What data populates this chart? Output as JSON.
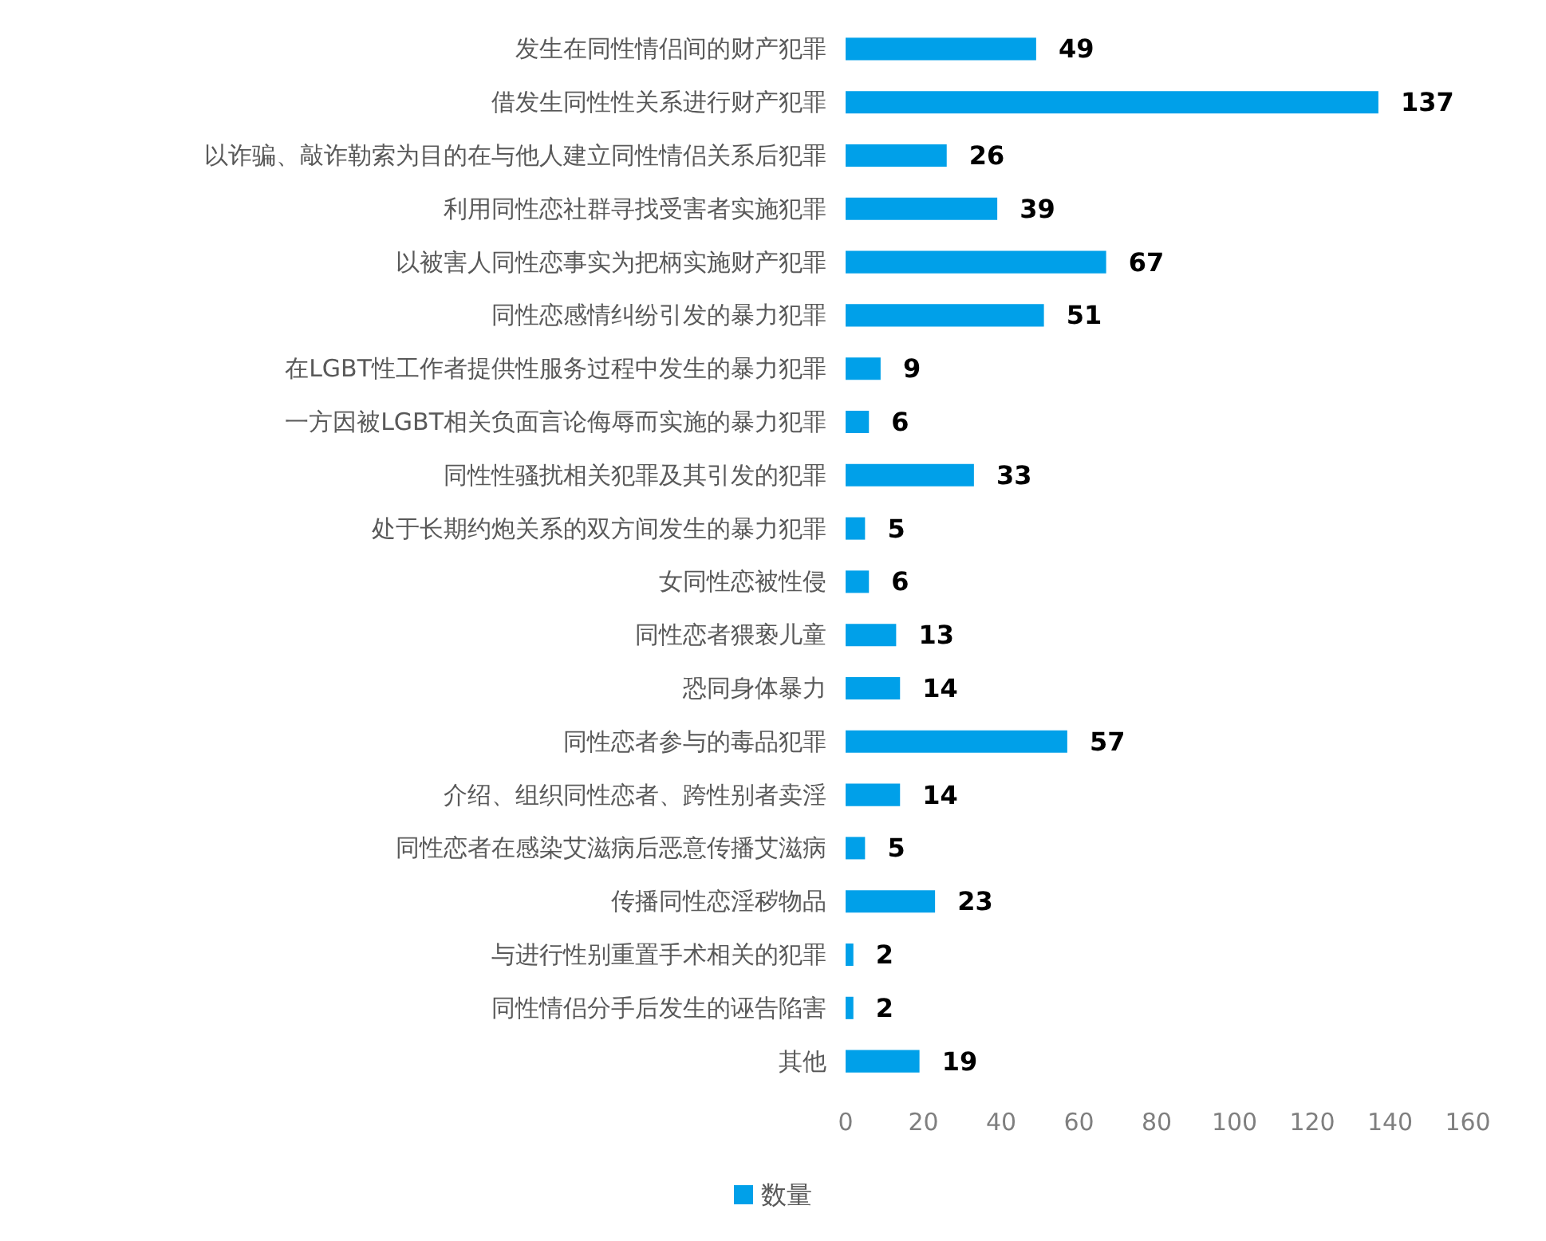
{
  "chart_data": {
    "type": "bar",
    "orientation": "horizontal",
    "categories": [
      "发生在同性情侣间的财产犯罪",
      "借发生同性性关系进行财产犯罪",
      "以诈骗、敲诈勒索为目的在与他人建立同性情侣关系后犯罪",
      "利用同性恋社群寻找受害者实施犯罪",
      "以被害人同性恋事实为把柄实施财产犯罪",
      "同性恋感情纠纷引发的暴力犯罪",
      "在LGBT性工作者提供性服务过程中发生的暴力犯罪",
      "一方因被LGBT相关负面言论侮辱而实施的暴力犯罪",
      "同性性骚扰相关犯罪及其引发的犯罪",
      "处于长期约炮关系的双方间发生的暴力犯罪",
      "女同性恋被性侵",
      "同性恋者猥亵儿童",
      "恐同身体暴力",
      "同性恋者参与的毒品犯罪",
      "介绍、组织同性恋者、跨性别者卖淫",
      "同性恋者在感染艾滋病后恶意传播艾滋病",
      "传播同性恋淫秽物品",
      "与进行性别重置手术相关的犯罪",
      "同性情侣分手后发生的诬告陷害",
      "其他"
    ],
    "series": [
      {
        "name": "数量",
        "color": "#00a0e9",
        "values": [
          49,
          137,
          26,
          39,
          67,
          51,
          9,
          6,
          33,
          5,
          6,
          13,
          14,
          57,
          14,
          5,
          23,
          2,
          2,
          19
        ]
      }
    ],
    "xlim": [
      0,
      160
    ],
    "xticks": [
      0,
      20,
      40,
      60,
      80,
      100,
      120,
      140,
      160
    ],
    "data_labels": true,
    "grid": false,
    "legend": "bottom"
  }
}
